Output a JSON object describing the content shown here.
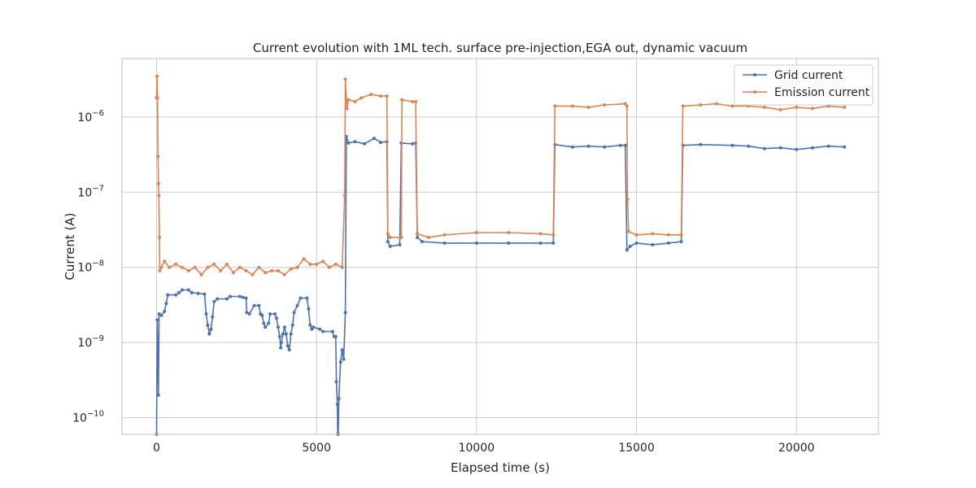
{
  "chart_data": {
    "type": "line",
    "title": "Current evolution with 1ML tech. surface pre-injection,EGA out, dynamic vacuum",
    "xlabel": "Elapsed time (s)",
    "ylabel": "Current (A)",
    "xlim": [
      -1080,
      22560
    ],
    "ylim": [
      6e-11,
      6e-06
    ],
    "yscale": "log",
    "grid": true,
    "legend_position": "top-right",
    "x_ticks": [
      {
        "value": 0,
        "label": "0"
      },
      {
        "value": 5000,
        "label": "5000"
      },
      {
        "value": 10000,
        "label": "10000"
      },
      {
        "value": 15000,
        "label": "15000"
      },
      {
        "value": 20000,
        "label": "20000"
      }
    ],
    "y_ticks": [
      {
        "value": 1e-10,
        "base": "10",
        "exp": "−10"
      },
      {
        "value": 1e-09,
        "base": "10",
        "exp": "−9"
      },
      {
        "value": 1e-08,
        "base": "10",
        "exp": "−8"
      },
      {
        "value": 1e-07,
        "base": "10",
        "exp": "−7"
      },
      {
        "value": 1e-06,
        "base": "10",
        "exp": "−6"
      }
    ],
    "series": [
      {
        "name": "Grid current",
        "color": "#4c72b0",
        "points": [
          [
            0,
            6e-11
          ],
          [
            20,
            2e-09
          ],
          [
            40,
            7e-10
          ],
          [
            60,
            2e-10
          ],
          [
            80,
            2.4e-09
          ],
          [
            150,
            2.3e-09
          ],
          [
            250,
            2.6e-09
          ],
          [
            300,
            3.3e-09
          ],
          [
            350,
            4.3e-09
          ],
          [
            600,
            4.3e-09
          ],
          [
            700,
            4.6e-09
          ],
          [
            800,
            5e-09
          ],
          [
            1000,
            5e-09
          ],
          [
            1100,
            4.6e-09
          ],
          [
            1300,
            4.5e-09
          ],
          [
            1500,
            4.4e-09
          ],
          [
            1550,
            2.4e-09
          ],
          [
            1600,
            1.7e-09
          ],
          [
            1650,
            1.3e-09
          ],
          [
            1700,
            1.5e-09
          ],
          [
            1750,
            2.2e-09
          ],
          [
            1800,
            3.5e-09
          ],
          [
            1900,
            3.8e-09
          ],
          [
            2200,
            3.8e-09
          ],
          [
            2300,
            4.1e-09
          ],
          [
            2600,
            4.1e-09
          ],
          [
            2700,
            4e-09
          ],
          [
            2800,
            3.9e-09
          ],
          [
            2820,
            2.5e-09
          ],
          [
            2900,
            2.4e-09
          ],
          [
            3050,
            3.1e-09
          ],
          [
            3200,
            3.1e-09
          ],
          [
            3250,
            2.4e-09
          ],
          [
            3300,
            2.3e-09
          ],
          [
            3350,
            1.8e-09
          ],
          [
            3400,
            1.6e-09
          ],
          [
            3500,
            1.8e-09
          ],
          [
            3550,
            2.4e-09
          ],
          [
            3700,
            2.4e-09
          ],
          [
            3750,
            2.1e-09
          ],
          [
            3800,
            1.6e-09
          ],
          [
            3850,
            1.2e-09
          ],
          [
            3880,
            8.5e-10
          ],
          [
            3900,
            1e-09
          ],
          [
            3950,
            1.3e-09
          ],
          [
            4000,
            1.6e-09
          ],
          [
            4050,
            1.3e-09
          ],
          [
            4100,
            9e-10
          ],
          [
            4150,
            8e-10
          ],
          [
            4200,
            1.3e-09
          ],
          [
            4250,
            1.7e-09
          ],
          [
            4300,
            2.5e-09
          ],
          [
            4400,
            3.1e-09
          ],
          [
            4500,
            3.9e-09
          ],
          [
            4700,
            3.9e-09
          ],
          [
            4750,
            2.8e-09
          ],
          [
            4800,
            1.7e-09
          ],
          [
            4850,
            1.5e-09
          ],
          [
            4900,
            1.6e-09
          ],
          [
            5100,
            1.5e-09
          ],
          [
            5200,
            1.4e-09
          ],
          [
            5500,
            1.4e-09
          ],
          [
            5550,
            1.2e-09
          ],
          [
            5600,
            1.2e-09
          ],
          [
            5620,
            3e-10
          ],
          [
            5650,
            1.5e-10
          ],
          [
            5660,
            6e-11
          ],
          [
            5680,
            6e-11
          ],
          [
            5700,
            1.8e-10
          ],
          [
            5750,
            5.5e-10
          ],
          [
            5800,
            8e-10
          ],
          [
            5850,
            6e-10
          ],
          [
            5900,
            2.5e-09
          ],
          [
            5930,
            5.5e-07
          ],
          [
            6000,
            4.5e-07
          ],
          [
            6200,
            4.7e-07
          ],
          [
            6500,
            4.4e-07
          ],
          [
            6800,
            5.2e-07
          ],
          [
            7000,
            4.6e-07
          ],
          [
            7200,
            4.7e-07
          ],
          [
            7230,
            2.2e-08
          ],
          [
            7300,
            1.9e-08
          ],
          [
            7600,
            2e-08
          ],
          [
            7650,
            4.5e-07
          ],
          [
            8000,
            4.4e-07
          ],
          [
            8100,
            4.5e-07
          ],
          [
            8150,
            2.5e-08
          ],
          [
            8300,
            2.2e-08
          ],
          [
            9000,
            2.1e-08
          ],
          [
            10000,
            2.1e-08
          ],
          [
            11000,
            2.1e-08
          ],
          [
            12000,
            2.1e-08
          ],
          [
            12400,
            2.1e-08
          ],
          [
            12450,
            4.3e-07
          ],
          [
            13000,
            4e-07
          ],
          [
            13500,
            4.1e-07
          ],
          [
            14000,
            4e-07
          ],
          [
            14500,
            4.2e-07
          ],
          [
            14650,
            4.2e-07
          ],
          [
            14700,
            1.7e-08
          ],
          [
            14800,
            1.9e-08
          ],
          [
            15000,
            2.1e-08
          ],
          [
            15500,
            2e-08
          ],
          [
            16000,
            2.1e-08
          ],
          [
            16400,
            2.2e-08
          ],
          [
            16450,
            4.2e-07
          ],
          [
            17000,
            4.3e-07
          ],
          [
            18000,
            4.2e-07
          ],
          [
            18500,
            4.1e-07
          ],
          [
            19000,
            3.8e-07
          ],
          [
            19500,
            3.9e-07
          ],
          [
            20000,
            3.7e-07
          ],
          [
            20500,
            3.9e-07
          ],
          [
            21000,
            4.1e-07
          ],
          [
            21500,
            4e-07
          ]
        ]
      },
      {
        "name": "Emission current",
        "color": "#dd8452",
        "points": [
          [
            0,
            1.8e-06
          ],
          [
            15,
            3.5e-06
          ],
          [
            30,
            1.8e-06
          ],
          [
            45,
            3e-07
          ],
          [
            60,
            1.3e-07
          ],
          [
            75,
            9e-08
          ],
          [
            90,
            2.5e-08
          ],
          [
            100,
            9e-09
          ],
          [
            150,
            1e-08
          ],
          [
            250,
            1.2e-08
          ],
          [
            400,
            1e-08
          ],
          [
            600,
            1.1e-08
          ],
          [
            800,
            1e-08
          ],
          [
            1000,
            9e-09
          ],
          [
            1200,
            1e-08
          ],
          [
            1400,
            8e-09
          ],
          [
            1600,
            1e-08
          ],
          [
            1800,
            1.1e-08
          ],
          [
            2000,
            9e-09
          ],
          [
            2200,
            1.1e-08
          ],
          [
            2400,
            8.5e-09
          ],
          [
            2600,
            1e-08
          ],
          [
            2800,
            9e-09
          ],
          [
            3000,
            8e-09
          ],
          [
            3200,
            1e-08
          ],
          [
            3400,
            8.5e-09
          ],
          [
            3600,
            9e-09
          ],
          [
            3800,
            9e-09
          ],
          [
            4000,
            8e-09
          ],
          [
            4200,
            9.5e-09
          ],
          [
            4400,
            1e-08
          ],
          [
            4600,
            1.3e-08
          ],
          [
            4800,
            1.1e-08
          ],
          [
            5000,
            1.1e-08
          ],
          [
            5200,
            1.2e-08
          ],
          [
            5400,
            1e-08
          ],
          [
            5600,
            1.1e-08
          ],
          [
            5800,
            1e-08
          ],
          [
            5880,
            9e-08
          ],
          [
            5900,
            3.2e-06
          ],
          [
            5950,
            1.3e-06
          ],
          [
            6000,
            1.7e-06
          ],
          [
            6200,
            1.6e-06
          ],
          [
            6400,
            1.8e-06
          ],
          [
            6700,
            2e-06
          ],
          [
            7000,
            1.9e-06
          ],
          [
            7200,
            1.9e-06
          ],
          [
            7230,
            2.8e-08
          ],
          [
            7300,
            2.5e-08
          ],
          [
            7650,
            2.5e-08
          ],
          [
            7670,
            1.7e-06
          ],
          [
            8000,
            1.6e-06
          ],
          [
            8100,
            1.6e-06
          ],
          [
            8150,
            2.8e-08
          ],
          [
            8500,
            2.5e-08
          ],
          [
            9000,
            2.7e-08
          ],
          [
            10000,
            2.9e-08
          ],
          [
            11000,
            2.9e-08
          ],
          [
            12000,
            2.8e-08
          ],
          [
            12400,
            2.7e-08
          ],
          [
            12450,
            1.4e-06
          ],
          [
            13000,
            1.4e-06
          ],
          [
            13500,
            1.35e-06
          ],
          [
            14000,
            1.45e-06
          ],
          [
            14650,
            1.5e-06
          ],
          [
            14700,
            1.4e-06
          ],
          [
            14720,
            8e-08
          ],
          [
            14750,
            3e-08
          ],
          [
            15000,
            2.7e-08
          ],
          [
            15500,
            2.8e-08
          ],
          [
            16000,
            2.7e-08
          ],
          [
            16400,
            2.7e-08
          ],
          [
            16450,
            1.4e-06
          ],
          [
            17000,
            1.45e-06
          ],
          [
            17500,
            1.5e-06
          ],
          [
            18000,
            1.4e-06
          ],
          [
            18500,
            1.4e-06
          ],
          [
            19000,
            1.35e-06
          ],
          [
            19500,
            1.25e-06
          ],
          [
            20000,
            1.35e-06
          ],
          [
            20500,
            1.3e-06
          ],
          [
            21000,
            1.4e-06
          ],
          [
            21500,
            1.35e-06
          ]
        ]
      }
    ]
  }
}
